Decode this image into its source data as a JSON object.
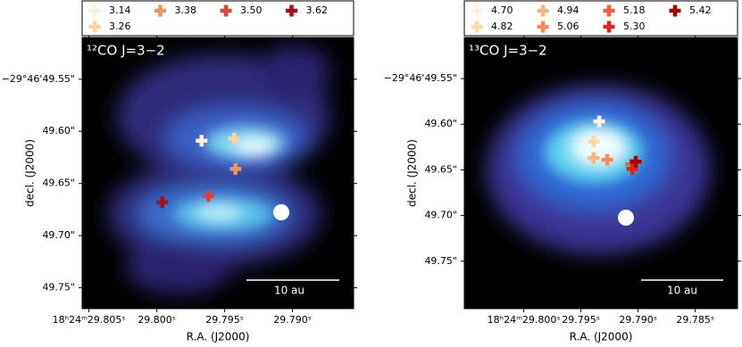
{
  "chart_data": [
    {
      "type": "scatter",
      "title": "¹²CO J=3−2",
      "xlabel": "R.A. (J2000)",
      "ylabel": "decl. (J2000)",
      "xlim": [
        29.8055,
        29.7855
      ],
      "ylim": [
        49.77,
        49.51
      ],
      "xticks": [
        {
          "value": 29.805,
          "label": "18ʰ24ᵐ29.805ˢ"
        },
        {
          "value": 29.8,
          "label": "29.800ˢ"
        },
        {
          "value": 29.795,
          "label": "29.795ˢ"
        },
        {
          "value": 29.79,
          "label": "29.790ˢ"
        }
      ],
      "yticks": [
        {
          "value": 49.55,
          "label": "−29°46'49.55\""
        },
        {
          "value": 49.6,
          "label": "49.60\""
        },
        {
          "value": 49.65,
          "label": "49.65\""
        },
        {
          "value": 49.7,
          "label": "49.70\""
        },
        {
          "value": 49.75,
          "label": "49.75\""
        }
      ],
      "legend_ncol": 4,
      "scale_bar": "10 au",
      "series": [
        {
          "name": "3.14",
          "color": "#fdeee2",
          "x": [
            29.7967
          ],
          "y": [
            49.609
          ]
        },
        {
          "name": "3.26",
          "color": "#fdd3a5",
          "x": [
            29.7943
          ],
          "y": [
            49.607
          ]
        },
        {
          "name": "3.38",
          "color": "#f3915a",
          "x": [
            29.7942
          ],
          "y": [
            49.636
          ]
        },
        {
          "name": "3.50",
          "color": "#dd4433",
          "x": [
            29.7962
          ],
          "y": [
            49.662
          ]
        },
        {
          "name": "3.62",
          "color": "#a50f15",
          "x": [
            29.7996
          ],
          "y": [
            49.668
          ]
        }
      ]
    },
    {
      "type": "scatter",
      "title": "¹³CO J=3−2",
      "xlabel": "R.A. (J2000)",
      "ylabel": "decl. (J2000)",
      "xlim": [
        29.8052,
        29.7813
      ],
      "ylim": [
        49.802,
        49.505
      ],
      "xticks": [
        {
          "value": 29.8,
          "label": "18ʰ24ᵐ29.800ˢ"
        },
        {
          "value": 29.795,
          "label": "29.795ˢ"
        },
        {
          "value": 29.79,
          "label": "29.790ˢ"
        },
        {
          "value": 29.785,
          "label": "29.785ˢ"
        }
      ],
      "yticks": [
        {
          "value": 49.55,
          "label": "−29°46'49.55\""
        },
        {
          "value": 49.6,
          "label": "49.60\""
        },
        {
          "value": 49.65,
          "label": "49.65\""
        },
        {
          "value": 49.7,
          "label": "49.70\""
        },
        {
          "value": 49.75,
          "label": "49.75\""
        }
      ],
      "legend_ncol": 4,
      "scale_bar": "10 au",
      "series": [
        {
          "name": "4.70",
          "color": "#fff1e4",
          "x": [
            29.7934
          ],
          "y": [
            49.597
          ]
        },
        {
          "name": "4.82",
          "color": "#fdd8a8",
          "x": [
            29.7939
          ],
          "y": [
            49.619
          ]
        },
        {
          "name": "4.94",
          "color": "#fdb27c",
          "x": [
            29.7939
          ],
          "y": [
            49.637
          ]
        },
        {
          "name": "5.06",
          "color": "#f98b5a",
          "x": [
            29.7927
          ],
          "y": [
            49.639
          ]
        },
        {
          "name": "5.18",
          "color": "#ec5e3f",
          "x": [
            29.7906
          ],
          "y": [
            49.644
          ]
        },
        {
          "name": "5.30",
          "color": "#d5281f",
          "x": [
            29.7905
          ],
          "y": [
            49.649
          ]
        },
        {
          "name": "5.42",
          "color": "#a60000",
          "x": [
            29.7902
          ],
          "y": [
            49.641
          ]
        }
      ]
    }
  ]
}
